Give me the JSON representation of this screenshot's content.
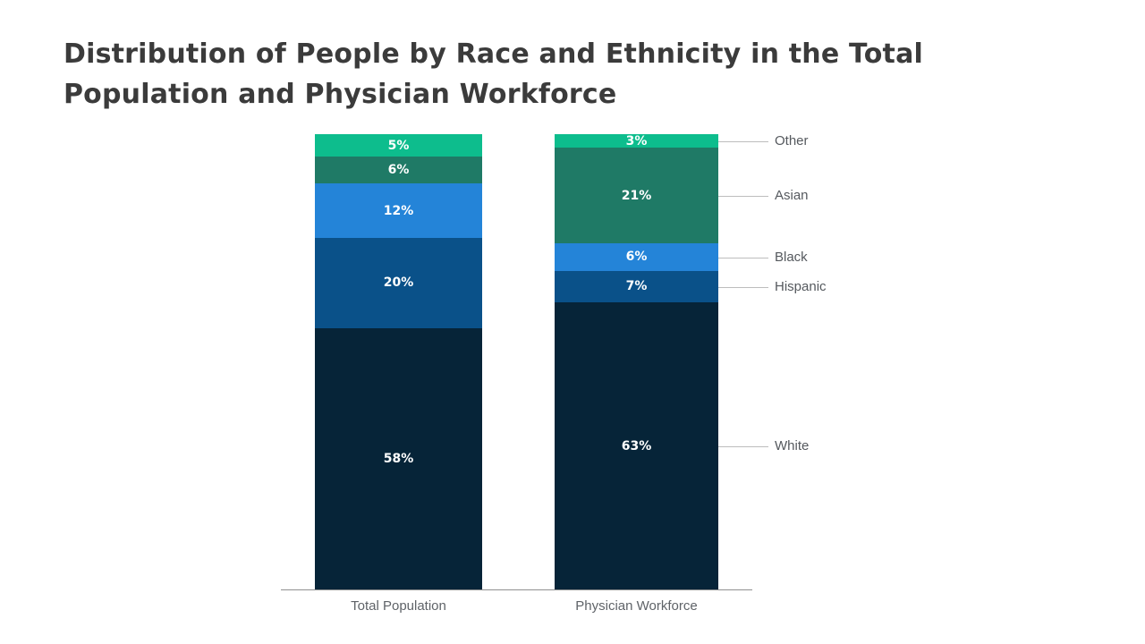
{
  "title": "Distribution of People by Race and Ethnicity in the Total Population and Physician Workforce",
  "chart_data": {
    "type": "bar",
    "variant": "stacked-percent",
    "categories": [
      "Total Population",
      "Physician Workforce"
    ],
    "series": [
      {
        "name": "White",
        "values": [
          58,
          63
        ],
        "color": "#062438"
      },
      {
        "name": "Hispanic",
        "values": [
          20,
          7
        ],
        "color": "#0a5189"
      },
      {
        "name": "Black",
        "values": [
          12,
          6
        ],
        "color": "#2484d8"
      },
      {
        "name": "Asian",
        "values": [
          6,
          21
        ],
        "color": "#1f7a66"
      },
      {
        "name": "Other",
        "values": [
          5,
          3
        ],
        "color": "#0dbd8d"
      }
    ],
    "value_suffix": "%",
    "ylim": [
      0,
      100
    ],
    "grid": false,
    "legend_position": "right",
    "legend_labels": [
      "Other",
      "Asian",
      "Black",
      "Hispanic",
      "White"
    ]
  },
  "colors": {
    "title_text": "#3b3b3b",
    "axis_label_text": "#5f6368",
    "legend_text": "#55595e",
    "connector_line": "#bdbdbd",
    "segment_label_text": "#ffffff",
    "axis_line": "#8f8f8f",
    "background": "#ffffff"
  }
}
